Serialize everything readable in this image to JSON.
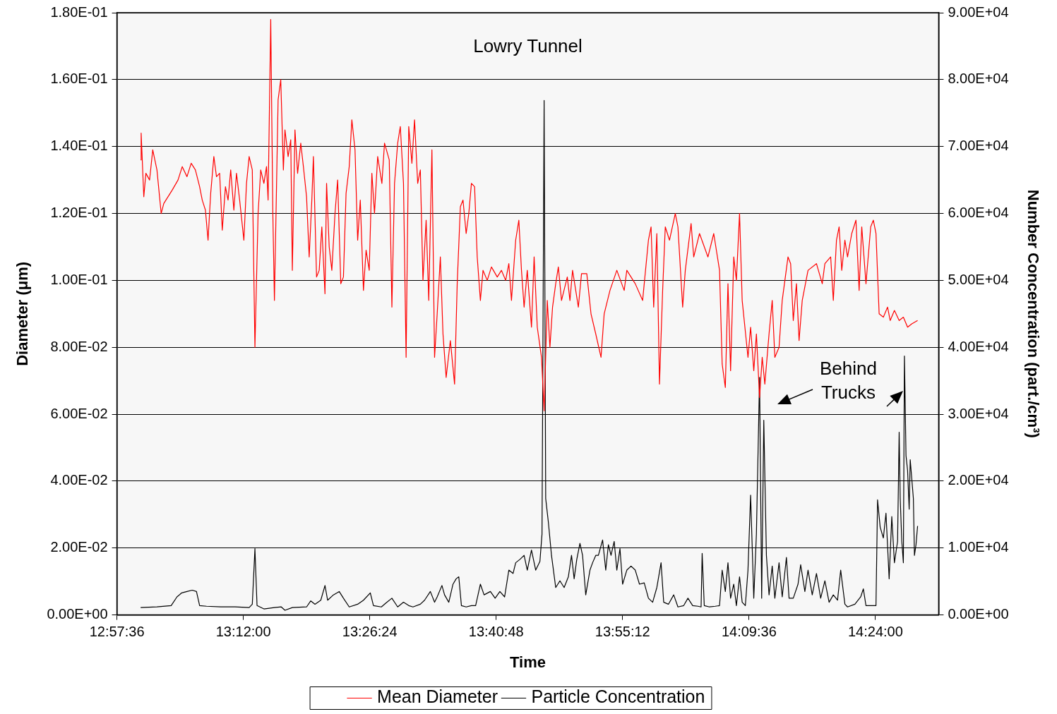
{
  "chart_data": {
    "type": "line",
    "title": "Lowry Tunnel",
    "xlabel": "Time",
    "ylabel": "Diameter (μm)",
    "y2label": "Number Concentration (part./cm³)",
    "xlim": [
      12.96,
      14.52
    ],
    "xticks": [
      {
        "value": 12.96,
        "label": "12:57:36"
      },
      {
        "value": 13.2,
        "label": "13:12:00"
      },
      {
        "value": 13.44,
        "label": "13:26:24"
      },
      {
        "value": 13.68,
        "label": "13:40:48"
      },
      {
        "value": 13.92,
        "label": "13:55:12"
      },
      {
        "value": 14.16,
        "label": "14:09:36"
      },
      {
        "value": 14.4,
        "label": "14:24:00"
      }
    ],
    "ylim": [
      0,
      0.18
    ],
    "yticks": [
      {
        "value": 0,
        "label": "0.00E+00"
      },
      {
        "value": 0.02,
        "label": "2.00E-02"
      },
      {
        "value": 0.04,
        "label": "4.00E-02"
      },
      {
        "value": 0.06,
        "label": "6.00E-02"
      },
      {
        "value": 0.08,
        "label": "8.00E-02"
      },
      {
        "value": 0.1,
        "label": "1.00E-01"
      },
      {
        "value": 0.12,
        "label": "1.20E-01"
      },
      {
        "value": 0.14,
        "label": "1.40E-01"
      },
      {
        "value": 0.16,
        "label": "1.60E-01"
      },
      {
        "value": 0.18,
        "label": "1.80E-01"
      }
    ],
    "y2lim": [
      0,
      90000
    ],
    "y2ticks": [
      {
        "value": 0,
        "label": "0.00E+00"
      },
      {
        "value": 10000,
        "label": "1.00E+04"
      },
      {
        "value": 20000,
        "label": "2.00E+04"
      },
      {
        "value": 30000,
        "label": "3.00E+04"
      },
      {
        "value": 40000,
        "label": "4.00E+04"
      },
      {
        "value": 50000,
        "label": "5.00E+04"
      },
      {
        "value": 60000,
        "label": "6.00E+04"
      },
      {
        "value": 70000,
        "label": "7.00E+04"
      },
      {
        "value": 80000,
        "label": "8.00E+04"
      },
      {
        "value": 90000,
        "label": "9.00E+04"
      }
    ],
    "grid": "y",
    "legend": "bottom",
    "marker": "none",
    "annotations": [
      {
        "text": "Behind Trucks",
        "x": 14.453,
        "y": 0.067
      }
    ],
    "series": [
      {
        "name": "Mean Diameter",
        "color": "#ff0000",
        "x": [
          13.005,
          13.006,
          13.011,
          13.015,
          13.022,
          13.028,
          13.036,
          13.044,
          13.049,
          13.057,
          13.065,
          13.076,
          13.084,
          13.093,
          13.101,
          13.109,
          13.117,
          13.122,
          13.128,
          13.133,
          13.138,
          13.144,
          13.149,
          13.155,
          13.16,
          13.166,
          13.171,
          13.176,
          13.182,
          13.187,
          13.193,
          13.201,
          13.206,
          13.211,
          13.217,
          13.222,
          13.228,
          13.233,
          13.239,
          13.244,
          13.247,
          13.252,
          13.256,
          13.259,
          13.266,
          13.271,
          13.276,
          13.279,
          13.285,
          13.29,
          13.293,
          13.298,
          13.303,
          13.309,
          13.314,
          13.32,
          13.325,
          13.33,
          13.333,
          13.339,
          13.344,
          13.349,
          13.355,
          13.358,
          13.363,
          13.368,
          13.374,
          13.379,
          13.385,
          13.39,
          13.395,
          13.401,
          13.406,
          13.412,
          13.417,
          13.422,
          13.428,
          13.433,
          13.439,
          13.444,
          13.449,
          13.455,
          13.463,
          13.468,
          13.477,
          13.482,
          13.487,
          13.493,
          13.498,
          13.504,
          13.509,
          13.514,
          13.52,
          13.525,
          13.531,
          13.536,
          13.541,
          13.547,
          13.552,
          13.558,
          13.563,
          13.568,
          13.574,
          13.579,
          13.585,
          13.593,
          13.601,
          13.606,
          13.612,
          13.617,
          13.623,
          13.628,
          13.633,
          13.639,
          13.644,
          13.65,
          13.655,
          13.663,
          13.671,
          13.682,
          13.69,
          13.698,
          13.704,
          13.709,
          13.717,
          13.723,
          13.728,
          13.733,
          13.739,
          13.747,
          13.752,
          13.758,
          13.766,
          13.771,
          13.777,
          13.782,
          13.787,
          13.793,
          13.798,
          13.804,
          13.815,
          13.82,
          13.825,
          13.836,
          13.842,
          13.852,
          13.86,
          13.869,
          13.879,
          13.885,
          13.896,
          13.909,
          13.923,
          13.928,
          13.944,
          13.958,
          13.969,
          13.974,
          13.979,
          13.985,
          13.99,
          13.996,
          14.001,
          14.009,
          14.02,
          14.025,
          14.034,
          14.039,
          14.05,
          14.055,
          14.066,
          14.082,
          14.093,
          14.104,
          14.109,
          14.115,
          14.12,
          14.125,
          14.131,
          14.136,
          14.142,
          14.147,
          14.158,
          14.163,
          14.169,
          14.174,
          14.18,
          14.185,
          14.19,
          14.198,
          14.204,
          14.209,
          14.217,
          14.223,
          14.234,
          14.239,
          14.244,
          14.25,
          14.255,
          14.261,
          14.272,
          14.288,
          14.299,
          14.304,
          14.315,
          14.32,
          14.326,
          14.331,
          14.336,
          14.342,
          14.347,
          14.355,
          14.363,
          14.369,
          14.374,
          14.382,
          14.391,
          14.396,
          14.401,
          14.407,
          14.415,
          14.423,
          14.428,
          14.436,
          14.445,
          14.453,
          14.461,
          14.469,
          14.48
        ],
        "values": [
          0.136,
          0.144,
          0.125,
          0.132,
          0.13,
          0.139,
          0.133,
          0.12,
          0.123,
          0.125,
          0.127,
          0.13,
          0.134,
          0.131,
          0.135,
          0.133,
          0.128,
          0.124,
          0.121,
          0.112,
          0.126,
          0.137,
          0.131,
          0.132,
          0.115,
          0.128,
          0.124,
          0.133,
          0.121,
          0.132,
          0.124,
          0.112,
          0.129,
          0.137,
          0.133,
          0.08,
          0.12,
          0.133,
          0.129,
          0.134,
          0.124,
          0.178,
          0.12,
          0.094,
          0.154,
          0.16,
          0.133,
          0.145,
          0.137,
          0.142,
          0.103,
          0.145,
          0.132,
          0.141,
          0.134,
          0.125,
          0.107,
          0.124,
          0.137,
          0.101,
          0.103,
          0.116,
          0.096,
          0.129,
          0.11,
          0.103,
          0.12,
          0.13,
          0.099,
          0.101,
          0.126,
          0.134,
          0.148,
          0.139,
          0.112,
          0.124,
          0.097,
          0.109,
          0.103,
          0.132,
          0.12,
          0.137,
          0.129,
          0.141,
          0.136,
          0.092,
          0.129,
          0.141,
          0.146,
          0.129,
          0.077,
          0.146,
          0.135,
          0.148,
          0.129,
          0.133,
          0.1,
          0.118,
          0.094,
          0.139,
          0.077,
          0.09,
          0.107,
          0.084,
          0.071,
          0.082,
          0.069,
          0.099,
          0.122,
          0.124,
          0.114,
          0.12,
          0.129,
          0.128,
          0.107,
          0.094,
          0.103,
          0.1,
          0.104,
          0.101,
          0.103,
          0.1,
          0.105,
          0.094,
          0.112,
          0.118,
          0.103,
          0.092,
          0.103,
          0.086,
          0.107,
          0.086,
          0.077,
          0.061,
          0.094,
          0.08,
          0.092,
          0.099,
          0.104,
          0.094,
          0.101,
          0.094,
          0.103,
          0.092,
          0.102,
          0.102,
          0.09,
          0.084,
          0.077,
          0.09,
          0.097,
          0.103,
          0.097,
          0.103,
          0.099,
          0.094,
          0.112,
          0.116,
          0.092,
          0.114,
          0.069,
          0.097,
          0.116,
          0.112,
          0.12,
          0.116,
          0.092,
          0.103,
          0.117,
          0.107,
          0.114,
          0.107,
          0.114,
          0.103,
          0.075,
          0.068,
          0.099,
          0.073,
          0.107,
          0.1,
          0.12,
          0.094,
          0.077,
          0.086,
          0.073,
          0.084,
          0.065,
          0.077,
          0.069,
          0.084,
          0.094,
          0.077,
          0.08,
          0.094,
          0.107,
          0.105,
          0.088,
          0.099,
          0.082,
          0.094,
          0.103,
          0.105,
          0.099,
          0.105,
          0.107,
          0.094,
          0.112,
          0.116,
          0.103,
          0.112,
          0.107,
          0.114,
          0.118,
          0.097,
          0.116,
          0.099,
          0.116,
          0.118,
          0.114,
          0.09,
          0.089,
          0.092,
          0.088,
          0.091,
          0.088,
          0.089,
          0.086,
          0.087,
          0.088
        ]
      },
      {
        "name": "Particle Concentration",
        "color": "#000000",
        "axis": "y2",
        "x": [
          13.005,
          13.036,
          13.063,
          13.074,
          13.083,
          13.093,
          13.103,
          13.111,
          13.117,
          13.13,
          13.157,
          13.184,
          13.211,
          13.217,
          13.222,
          13.226,
          13.239,
          13.259,
          13.272,
          13.279,
          13.293,
          13.32,
          13.328,
          13.336,
          13.347,
          13.355,
          13.36,
          13.371,
          13.382,
          13.39,
          13.401,
          13.417,
          13.428,
          13.441,
          13.447,
          13.462,
          13.471,
          13.482,
          13.493,
          13.504,
          13.514,
          13.522,
          13.536,
          13.544,
          13.555,
          13.563,
          13.568,
          13.577,
          13.582,
          13.59,
          13.598,
          13.604,
          13.609,
          13.614,
          13.623,
          13.633,
          13.641,
          13.65,
          13.657,
          13.669,
          13.678,
          13.687,
          13.696,
          13.704,
          13.712,
          13.717,
          13.725,
          13.733,
          13.739,
          13.747,
          13.755,
          13.763,
          13.767,
          13.771,
          13.774,
          13.779,
          13.785,
          13.793,
          13.801,
          13.809,
          13.817,
          13.823,
          13.828,
          13.833,
          13.839,
          13.844,
          13.85,
          13.858,
          13.863,
          13.869,
          13.874,
          13.882,
          13.888,
          13.893,
          13.898,
          13.904,
          13.909,
          13.915,
          13.92,
          13.928,
          13.936,
          13.944,
          13.952,
          13.961,
          13.969,
          13.977,
          13.985,
          13.993,
          13.998,
          14.007,
          14.017,
          14.025,
          14.036,
          14.044,
          14.053,
          14.063,
          14.069,
          14.071,
          14.075,
          14.085,
          14.096,
          14.104,
          14.109,
          14.115,
          14.12,
          14.125,
          14.131,
          14.136,
          14.142,
          14.147,
          14.153,
          14.158,
          14.163,
          14.169,
          14.174,
          14.18,
          14.184,
          14.188,
          14.193,
          14.198,
          14.204,
          14.209,
          14.217,
          14.223,
          14.231,
          14.236,
          14.244,
          14.253,
          14.258,
          14.266,
          14.272,
          14.28,
          14.288,
          14.296,
          14.304,
          14.312,
          14.32,
          14.328,
          14.334,
          14.342,
          14.347,
          14.361,
          14.372,
          14.377,
          14.382,
          14.396,
          14.401,
          14.404,
          14.409,
          14.415,
          14.42,
          14.426,
          14.431,
          14.436,
          14.442,
          14.445,
          14.447,
          14.45,
          14.453,
          14.455,
          14.458,
          14.461,
          14.464,
          14.466,
          14.472,
          14.474,
          14.477,
          14.48
        ],
        "values": [
          1100,
          1200,
          1400,
          2700,
          3300,
          3500,
          3700,
          3500,
          1400,
          1300,
          1200,
          1200,
          1100,
          1600,
          9900,
          1400,
          900,
          1100,
          1200,
          700,
          1100,
          1200,
          2100,
          1600,
          2200,
          4400,
          2200,
          3000,
          3500,
          2500,
          1200,
          1600,
          2200,
          3300,
          1400,
          1200,
          1800,
          2500,
          1200,
          1900,
          1400,
          1200,
          1600,
          2200,
          3500,
          1900,
          2700,
          4400,
          3000,
          1900,
          4600,
          5400,
          5700,
          1400,
          1200,
          1400,
          1400,
          4600,
          3000,
          3500,
          2500,
          3500,
          2700,
          6700,
          6200,
          7800,
          8300,
          8900,
          6700,
          9700,
          6700,
          8000,
          12100,
          76900,
          17400,
          13900,
          8900,
          4100,
          5100,
          4100,
          5700,
          8900,
          5400,
          8300,
          10700,
          8900,
          3000,
          6700,
          7800,
          8900,
          8900,
          11200,
          6700,
          10500,
          8900,
          11000,
          6700,
          9900,
          4600,
          6700,
          7300,
          6700,
          4600,
          4800,
          2500,
          1900,
          4100,
          7800,
          1900,
          1600,
          3000,
          1200,
          1400,
          2500,
          1400,
          1300,
          1200,
          9200,
          1400,
          1200,
          1300,
          1400,
          6700,
          3500,
          7800,
          2500,
          4600,
          1400,
          5700,
          1900,
          1400,
          6700,
          17900,
          2500,
          12100,
          35500,
          2500,
          29100,
          8900,
          3000,
          7300,
          2500,
          7800,
          2700,
          8600,
          2500,
          2500,
          4600,
          7500,
          3500,
          6700,
          3000,
          6200,
          2500,
          5100,
          1900,
          3000,
          2200,
          6700,
          1600,
          1200,
          1600,
          2700,
          3900,
          1400,
          1400,
          1400,
          17200,
          13100,
          11500,
          15200,
          5400,
          14700,
          7800,
          11000,
          27300,
          17400,
          11000,
          7800,
          38700,
          23800,
          21600,
          15800,
          23200,
          17400,
          8900,
          10500,
          13300
        ]
      }
    ]
  }
}
